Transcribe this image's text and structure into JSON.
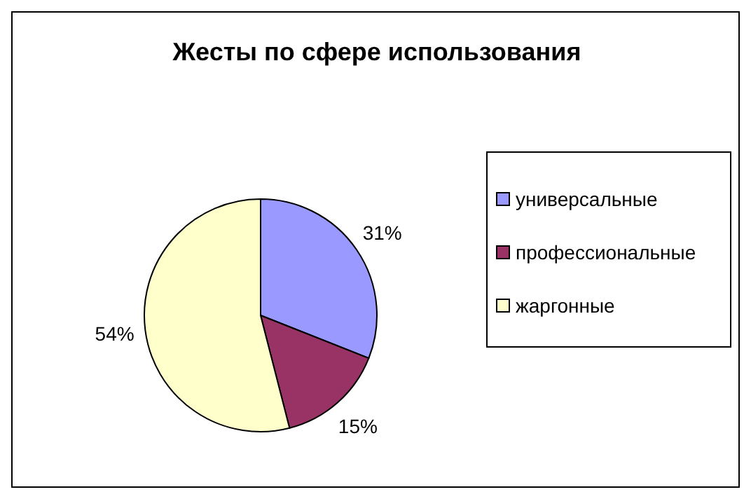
{
  "chart_data": {
    "type": "pie",
    "title": "Жесты по сфере использования",
    "categories": [
      "универсальные",
      "профессиональные",
      "жаргонные"
    ],
    "values": [
      31,
      15,
      54
    ],
    "colors": [
      "#9999ff",
      "#993366",
      "#ffffcc"
    ],
    "value_labels": [
      "31%",
      "15%",
      "54%"
    ],
    "legend": "right"
  }
}
